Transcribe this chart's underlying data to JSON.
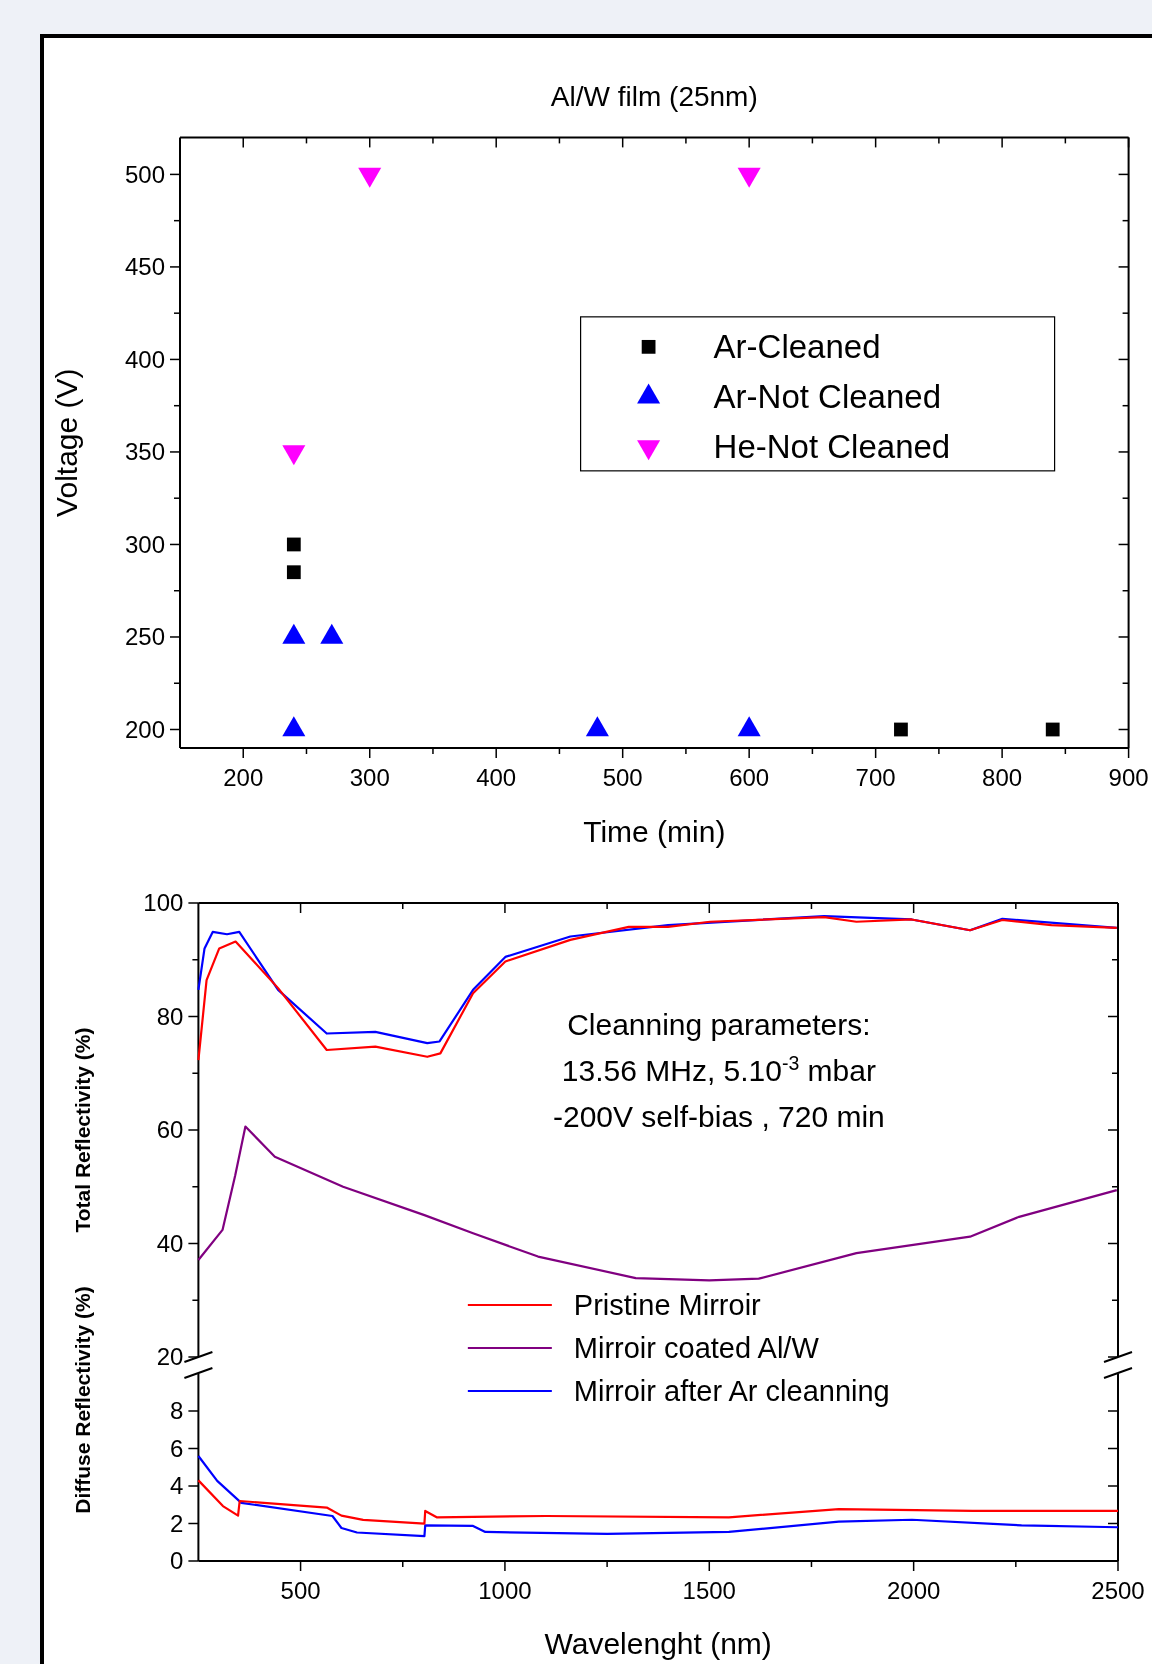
{
  "chart_data": [
    {
      "type": "scatter",
      "title": "Al/W film (25nm)",
      "xlabel": "Time (min)",
      "ylabel": "Voltage (V)",
      "xlim": [
        150,
        900
      ],
      "ylim": [
        190,
        520
      ],
      "xticks": [
        200,
        {
          "value": 250,
          "label": null
        },
        300,
        {
          "value": 350,
          "label": null
        },
        400,
        {
          "value": 450,
          "label": null
        },
        500,
        {
          "value": 550,
          "label": null
        },
        600,
        {
          "value": 650,
          "label": null
        },
        700,
        {
          "value": 750,
          "label": null
        },
        800,
        {
          "value": 850,
          "label": null
        },
        900
      ],
      "yticks": [
        200,
        {
          "value": 225,
          "label": null
        },
        250,
        {
          "value": 275,
          "label": null
        },
        300,
        {
          "value": 325,
          "label": null
        },
        350,
        {
          "value": 375,
          "label": null
        },
        400,
        {
          "value": 425,
          "label": null
        },
        450,
        {
          "value": 475,
          "label": null
        },
        500
      ],
      "legend": "right",
      "series": [
        {
          "name": "Ar-Cleaned",
          "color": "#000000",
          "marker": "square",
          "x": [
            240,
            240,
            720,
            840
          ],
          "values": [
            300,
            285,
            200,
            200
          ]
        },
        {
          "name": "Ar-Not Cleaned",
          "color": "#0000ff",
          "marker": "triangle",
          "x": [
            240,
            270,
            240,
            480,
            600
          ],
          "values": [
            250,
            250,
            200,
            200,
            200
          ]
        },
        {
          "name": "He-Not Cleaned",
          "color": "#ff00ff",
          "marker": "triangle-down",
          "x": [
            300,
            600,
            240
          ],
          "values": [
            500,
            500,
            350
          ]
        }
      ]
    },
    {
      "type": "line",
      "ylabel": "Total Reflectivity (%)",
      "xlim": [
        250,
        2500
      ],
      "ylim": [
        20,
        100
      ],
      "tick_labels": "y",
      "xticks": [
        500,
        {
          "value": 750,
          "label": null
        },
        1000,
        {
          "value": 1250,
          "label": null
        },
        1500,
        {
          "value": 1750,
          "label": null
        },
        2000,
        {
          "value": 2250,
          "label": null
        },
        2500
      ],
      "yticks": [
        20,
        {
          "value": 30,
          "label": null
        },
        40,
        {
          "value": 50,
          "label": null
        },
        60,
        {
          "value": 70,
          "label": null
        },
        80,
        {
          "value": 90,
          "label": null
        },
        100
      ],
      "legend": "bottom",
      "annotations": [
        "Cleanning parameters:",
        "13.56 MHz, 5.10$^{-3}$ mbar",
        "-200V self-bias , 720 min"
      ],
      "series": [
        {
          "name": "Pristine Mirroir",
          "color": "#ff0000",
          "x": [
            250,
            270,
            301,
            341,
            445,
            564,
            683,
            810,
            842,
            922,
            1001,
            1160,
            1303,
            1399,
            1502,
            1781,
            1860,
            1995,
            2138,
            2217,
            2337,
            2497
          ],
          "values": [
            72.3,
            86.4,
            92,
            93.2,
            85,
            74.1,
            74.7,
            72.9,
            73.5,
            84.1,
            89.7,
            93.5,
            95.8,
            95.8,
            96.7,
            97.5,
            96.7,
            97.1,
            95.2,
            97,
            96.1,
            95.6
          ]
        },
        {
          "name": "Mirroir coated Al/W",
          "color": "#800080",
          "x": [
            250,
            309,
            340,
            365,
            437,
            604,
            803,
            922,
            1081,
            1320,
            1500,
            1621,
            1860,
            2138,
            2258,
            2497
          ],
          "values": [
            37.1,
            42.4,
            52,
            60.6,
            55.3,
            50,
            45,
            41.8,
            37.7,
            33.9,
            33.5,
            33.8,
            38.3,
            41.2,
            44.7,
            49.4
          ]
        },
        {
          "name": "Mirroir after Ar cleanning",
          "color": "#0000ff",
          "x": [
            250,
            265,
            285,
            320,
            350,
            445,
            564,
            683,
            810,
            840,
            922,
            1001,
            1160,
            1399,
            1781,
            1995,
            2138,
            2217,
            2497
          ],
          "values": [
            84.7,
            92,
            94.9,
            94.5,
            94.9,
            84.7,
            77,
            77.3,
            75.3,
            75.6,
            84.7,
            90.5,
            94.1,
            96.1,
            97.7,
            97.1,
            95.2,
            97.2,
            95.6
          ]
        }
      ]
    },
    {
      "type": "line",
      "xlabel": "Wavelenght (nm)",
      "ylabel": "Diffuse Reflectivity (%)",
      "xlim": [
        250,
        2500
      ],
      "ylim": [
        0,
        10
      ],
      "xticks": [
        500,
        {
          "value": 750,
          "label": null
        },
        1000,
        {
          "value": 1250,
          "label": null
        },
        1500,
        {
          "value": 1750,
          "label": null
        },
        2000,
        {
          "value": 2250,
          "label": null
        },
        2500
      ],
      "yticks": [
        0,
        2,
        4,
        6,
        8
      ],
      "series": [
        {
          "color": "#ff0000",
          "x": [
            250,
            310,
            347,
            351,
            564,
            600,
            653,
            803,
            805,
            833,
            1101,
            1548,
            1817,
            2144,
            2500
          ],
          "values": [
            4.3,
            2.93,
            2.42,
            3.2,
            2.85,
            2.42,
            2.19,
            1.99,
            2.67,
            2.33,
            2.4,
            2.33,
            2.77,
            2.67,
            2.67
          ]
        },
        {
          "color": "#0000ff",
          "x": [
            250,
            296,
            355,
            578,
            600,
            638,
            803,
            805,
            922,
            952,
            1250,
            1548,
            1817,
            1996,
            2264,
            2500
          ],
          "values": [
            5.6,
            4.27,
            3.1,
            2.4,
            1.76,
            1.52,
            1.33,
            1.9,
            1.87,
            1.55,
            1.45,
            1.55,
            2.1,
            2.2,
            1.9,
            1.8
          ]
        }
      ]
    }
  ]
}
